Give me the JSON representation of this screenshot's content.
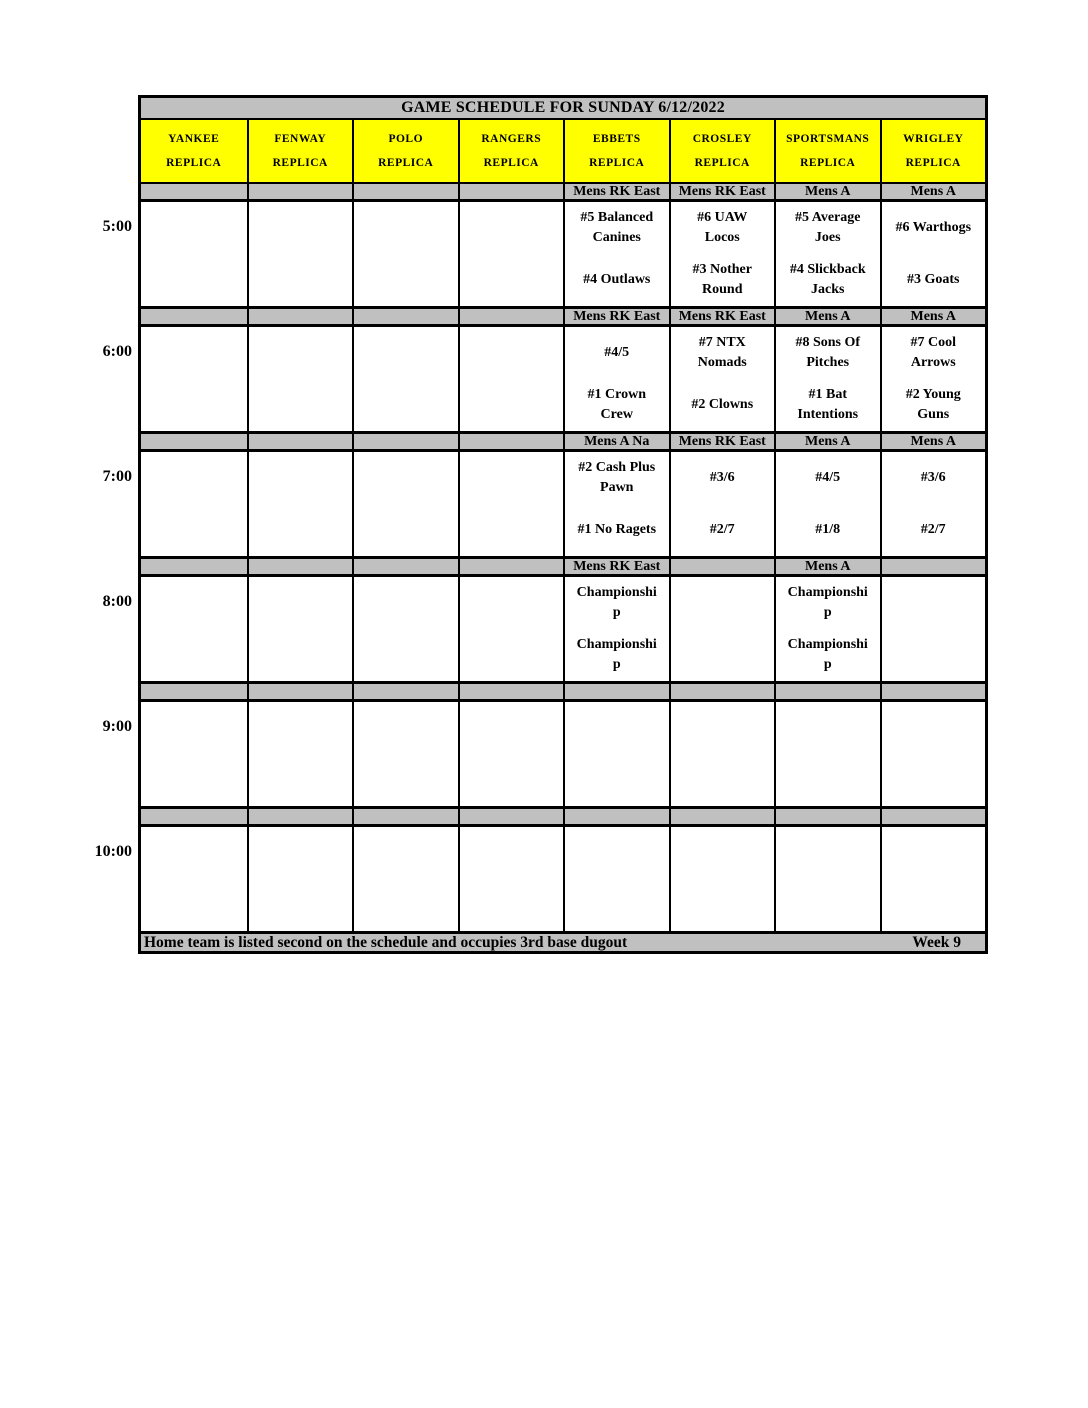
{
  "title": "GAME SCHEDULE FOR SUNDAY 6/12/2022",
  "colors": {
    "field_header_bg": "#ffff00",
    "band_bg": "#c0c0c0",
    "border": "#000000"
  },
  "fields": [
    {
      "line1": "YANKEE",
      "line2": "REPLICA"
    },
    {
      "line1": "FENWAY",
      "line2": "REPLICA"
    },
    {
      "line1": "POLO",
      "line2": "REPLICA"
    },
    {
      "line1": "RANGERS",
      "line2": "REPLICA"
    },
    {
      "line1": "EBBETS",
      "line2": "REPLICA"
    },
    {
      "line1": "CROSLEY",
      "line2": "REPLICA"
    },
    {
      "line1": "SPORTSMANS",
      "line2": "REPLICA"
    },
    {
      "line1": "WRIGLEY",
      "line2": "REPLICA"
    }
  ],
  "slots": [
    {
      "time": "5:00",
      "band": {
        "c4": "Mens RK East",
        "c5": "Mens RK East",
        "c6": "Mens A",
        "c7": "Mens A"
      },
      "games": {
        "c4": {
          "away": "#5 Balanced Canines",
          "home": "#4 Outlaws"
        },
        "c5": {
          "away": "#6 UAW Locos",
          "home": "#3 Nother Round"
        },
        "c6": {
          "away": "#5 Average Joes",
          "home": "#4 Slickback Jacks"
        },
        "c7": {
          "away": "#6 Warthogs",
          "home": "#3 Goats"
        }
      }
    },
    {
      "time": "6:00",
      "band": {
        "c4": "Mens RK East",
        "c5": "Mens RK East",
        "c6": "Mens A",
        "c7": "Mens A"
      },
      "games": {
        "c4": {
          "away": "#4/5",
          "home": "#1 Crown Crew"
        },
        "c5": {
          "away": "#7 NTX Nomads",
          "home": "#2 Clowns"
        },
        "c6": {
          "away": "#8 Sons Of Pitches",
          "home": "#1 Bat Intentions"
        },
        "c7": {
          "away": "#7 Cool Arrows",
          "home": "#2 Young Guns"
        }
      }
    },
    {
      "time": "7:00",
      "band": {
        "c4": "Mens A Na",
        "c5": "Mens RK East",
        "c6": "Mens A",
        "c7": "Mens A"
      },
      "games": {
        "c4": {
          "away": "#2 Cash Plus Pawn",
          "home": "#1 No Ragets"
        },
        "c5": {
          "away": "#3/6",
          "home": "#2/7"
        },
        "c6": {
          "away": "#4/5",
          "home": "#1/8"
        },
        "c7": {
          "away": "#3/6",
          "home": "#2/7"
        }
      }
    },
    {
      "time": "8:00",
      "band": {
        "c4": "Mens RK East",
        "c5": "",
        "c6": "Mens A",
        "c7": ""
      },
      "games": {
        "c4": {
          "away": "Championship",
          "home": "Championship"
        },
        "c6": {
          "away": "Championship",
          "home": "Championship"
        }
      }
    },
    {
      "time": "9:00",
      "band": {},
      "games": {}
    },
    {
      "time": "10:00",
      "band": {},
      "games": {}
    }
  ],
  "footer": {
    "note": "Home team is listed second on the schedule and occupies 3rd base dugout",
    "week": "Week 9"
  }
}
